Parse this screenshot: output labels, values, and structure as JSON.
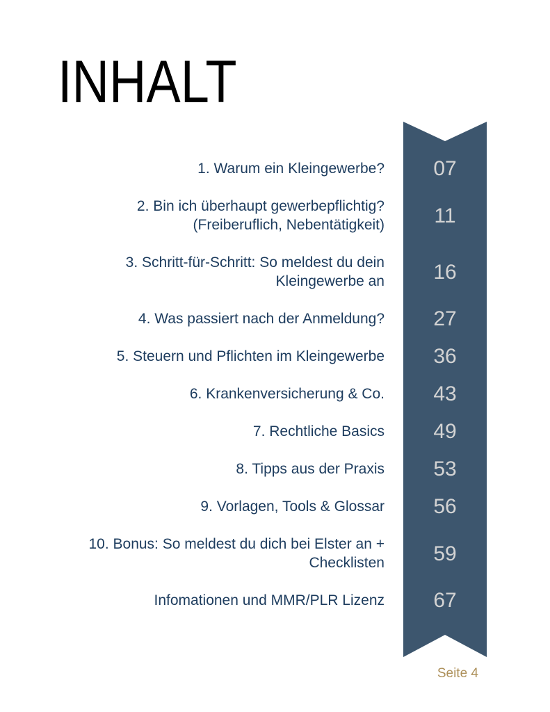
{
  "page": {
    "title": "INHALT",
    "footer": "Seite 4"
  },
  "toc": {
    "entries": [
      {
        "label": "1. Warum ein Kleingewerbe?",
        "page": "07"
      },
      {
        "label": "2. Bin ich überhaupt gewerbepflichtig? (Freiberuflich, Nebentätigkeit)",
        "page": "11"
      },
      {
        "label": "3. Schritt-für-Schritt: So meldest du dein Kleingewerbe an",
        "page": "16"
      },
      {
        "label": "4. Was passiert nach der Anmeldung?",
        "page": "27"
      },
      {
        "label": "5. Steuern und Pflichten im Kleingewerbe",
        "page": "36"
      },
      {
        "label": "6. Krankenversicherung & Co.",
        "page": "43"
      },
      {
        "label": "7. Rechtliche Basics",
        "page": "49"
      },
      {
        "label": "8. Tipps aus der Praxis",
        "page": "53"
      },
      {
        "label": "9. Vorlagen, Tools & Glossar",
        "page": "56"
      },
      {
        "label": "10. Bonus: So meldest du dich bei Elster an + Checklisten",
        "page": "59"
      },
      {
        "label": "Infomationen und MMR/PLR Lizenz",
        "page": "67"
      }
    ]
  },
  "colors": {
    "ribbon": "#3d566e",
    "entry_text": "#1d3c5e",
    "page_number_text": "#d3d3d3",
    "footer_text": "#ad905a",
    "title_text": "#000000",
    "background": "#ffffff"
  }
}
